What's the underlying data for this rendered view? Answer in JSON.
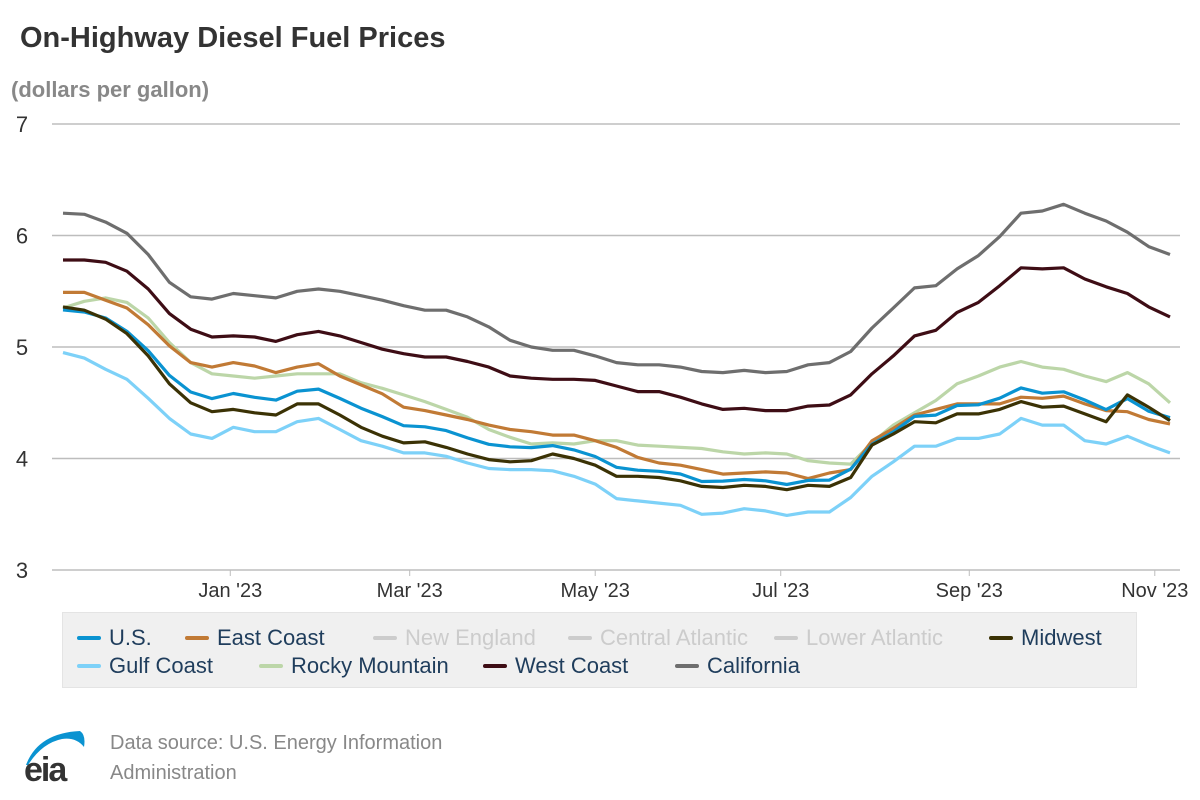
{
  "chart_data": {
    "type": "line",
    "title": "On-Highway Diesel Fuel Prices",
    "ylabel": "(dollars per gallon)",
    "ylim": [
      3,
      7
    ],
    "yticks": [
      3,
      4,
      5,
      6,
      7
    ],
    "grid": true,
    "legend_position": "bottom",
    "xticks": [
      {
        "date": "2023-01-01",
        "label": "Jan '23"
      },
      {
        "date": "2023-03-01",
        "label": "Mar '23"
      },
      {
        "date": "2023-05-01",
        "label": "May '23"
      },
      {
        "date": "2023-07-01",
        "label": "Jul '23"
      },
      {
        "date": "2023-09-01",
        "label": "Sep '23"
      },
      {
        "date": "2023-11-01",
        "label": "Nov '23"
      }
    ],
    "x_start": "2022-11-07",
    "x_interval": "weekly",
    "series": [
      {
        "name": "U.S.",
        "color": "#0a93d1",
        "visible": true,
        "values": [
          5.333,
          5.314,
          5.26,
          5.141,
          4.967,
          4.745,
          4.596,
          4.537,
          4.583,
          4.549,
          4.524,
          4.604,
          4.622,
          4.539,
          4.451,
          4.376,
          4.294,
          4.284,
          4.25,
          4.185,
          4.127,
          4.105,
          4.098,
          4.116,
          4.077,
          4.018,
          3.921,
          3.895,
          3.885,
          3.861,
          3.794,
          3.797,
          3.812,
          3.8,
          3.767,
          3.804,
          3.806,
          3.905,
          4.127,
          4.239,
          4.378,
          4.389,
          4.475,
          4.482,
          4.541,
          4.633,
          4.586,
          4.598,
          4.525,
          4.439,
          4.537,
          4.424,
          4.366
        ]
      },
      {
        "name": "East Coast",
        "color": "#c17a35",
        "visible": true,
        "values": [
          5.49,
          5.49,
          5.42,
          5.35,
          5.2,
          5.01,
          4.86,
          4.82,
          4.86,
          4.83,
          4.77,
          4.82,
          4.85,
          4.74,
          4.66,
          4.58,
          4.46,
          4.43,
          4.39,
          4.35,
          4.3,
          4.26,
          4.24,
          4.21,
          4.21,
          4.16,
          4.1,
          4.01,
          3.96,
          3.94,
          3.9,
          3.86,
          3.87,
          3.88,
          3.87,
          3.82,
          3.87,
          3.9,
          4.16,
          4.27,
          4.39,
          4.44,
          4.49,
          4.49,
          4.49,
          4.55,
          4.54,
          4.56,
          4.49,
          4.43,
          4.42,
          4.35,
          4.31
        ]
      },
      {
        "name": "New England",
        "color": "#cccccc",
        "visible": false
      },
      {
        "name": "Central Atlantic",
        "color": "#cccccc",
        "visible": false
      },
      {
        "name": "Lower Atlantic",
        "color": "#cccccc",
        "visible": false
      },
      {
        "name": "Midwest",
        "color": "#3b3205",
        "visible": true,
        "values": [
          5.36,
          5.33,
          5.25,
          5.12,
          4.92,
          4.67,
          4.5,
          4.42,
          4.44,
          4.41,
          4.39,
          4.49,
          4.49,
          4.39,
          4.28,
          4.2,
          4.14,
          4.15,
          4.1,
          4.04,
          3.99,
          3.97,
          3.98,
          4.04,
          4.0,
          3.94,
          3.84,
          3.84,
          3.83,
          3.8,
          3.75,
          3.74,
          3.76,
          3.75,
          3.72,
          3.76,
          3.75,
          3.83,
          4.12,
          4.22,
          4.33,
          4.32,
          4.4,
          4.4,
          4.44,
          4.51,
          4.46,
          4.47,
          4.4,
          4.33,
          4.57,
          4.46,
          4.34
        ]
      },
      {
        "name": "Gulf Coast",
        "color": "#7dd1f8",
        "visible": true,
        "values": [
          4.95,
          4.9,
          4.8,
          4.71,
          4.54,
          4.36,
          4.22,
          4.18,
          4.28,
          4.24,
          4.24,
          4.33,
          4.36,
          4.26,
          4.16,
          4.11,
          4.05,
          4.05,
          4.02,
          3.96,
          3.91,
          3.9,
          3.9,
          3.89,
          3.84,
          3.77,
          3.64,
          3.62,
          3.6,
          3.58,
          3.5,
          3.51,
          3.55,
          3.53,
          3.49,
          3.52,
          3.52,
          3.65,
          3.84,
          3.97,
          4.11,
          4.11,
          4.18,
          4.18,
          4.22,
          4.36,
          4.3,
          4.3,
          4.16,
          4.13,
          4.2,
          4.12,
          4.05
        ]
      },
      {
        "name": "Rocky Mountain",
        "color": "#bcd6a8",
        "visible": true,
        "values": [
          5.35,
          5.41,
          5.44,
          5.4,
          5.26,
          5.04,
          4.86,
          4.76,
          4.74,
          4.72,
          4.74,
          4.76,
          4.76,
          4.76,
          4.68,
          4.63,
          4.57,
          4.51,
          4.44,
          4.37,
          4.26,
          4.19,
          4.13,
          4.14,
          4.13,
          4.16,
          4.16,
          4.12,
          4.11,
          4.1,
          4.09,
          4.06,
          4.04,
          4.05,
          4.04,
          3.98,
          3.96,
          3.95,
          4.14,
          4.3,
          4.41,
          4.52,
          4.67,
          4.74,
          4.82,
          4.87,
          4.82,
          4.8,
          4.74,
          4.69,
          4.77,
          4.67,
          4.5
        ]
      },
      {
        "name": "West Coast",
        "color": "#3e0d15",
        "visible": true,
        "values": [
          5.78,
          5.78,
          5.76,
          5.68,
          5.52,
          5.3,
          5.16,
          5.09,
          5.1,
          5.09,
          5.05,
          5.11,
          5.14,
          5.1,
          5.04,
          4.98,
          4.94,
          4.91,
          4.91,
          4.87,
          4.82,
          4.74,
          4.72,
          4.71,
          4.71,
          4.7,
          4.65,
          4.6,
          4.6,
          4.55,
          4.49,
          4.44,
          4.45,
          4.43,
          4.43,
          4.47,
          4.48,
          4.57,
          4.76,
          4.92,
          5.1,
          5.15,
          5.31,
          5.4,
          5.55,
          5.71,
          5.7,
          5.71,
          5.61,
          5.54,
          5.48,
          5.36,
          5.27
        ]
      },
      {
        "name": "California",
        "color": "#6e6e6e",
        "visible": true,
        "values": [
          6.2,
          6.19,
          6.12,
          6.02,
          5.83,
          5.58,
          5.45,
          5.43,
          5.48,
          5.46,
          5.44,
          5.5,
          5.52,
          5.5,
          5.46,
          5.42,
          5.37,
          5.33,
          5.33,
          5.27,
          5.18,
          5.06,
          5.0,
          4.97,
          4.97,
          4.92,
          4.86,
          4.84,
          4.84,
          4.82,
          4.78,
          4.77,
          4.79,
          4.77,
          4.78,
          4.84,
          4.86,
          4.96,
          5.17,
          5.35,
          5.53,
          5.55,
          5.7,
          5.82,
          5.99,
          6.2,
          6.22,
          6.28,
          6.2,
          6.13,
          6.03,
          5.9,
          5.83
        ]
      }
    ]
  },
  "footer": {
    "source_line1": "Data source: U.S. Energy Information",
    "source_line2": "Administration",
    "logo_text": "eia"
  }
}
